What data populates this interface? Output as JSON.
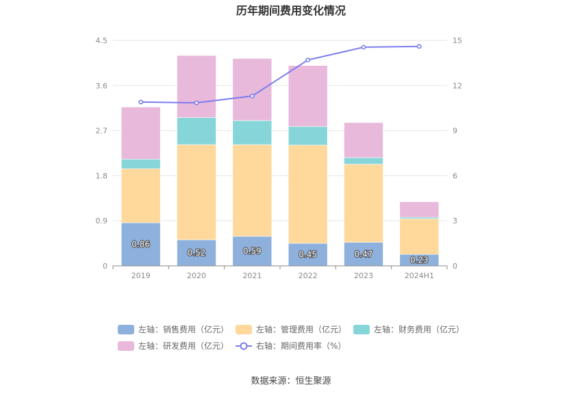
{
  "title": "历年期间费用变化情况",
  "source": "数据来源：恒生聚源",
  "chart_data": {
    "type": "bar",
    "stacked": true,
    "categories": [
      "2019",
      "2020",
      "2021",
      "2022",
      "2023",
      "2024H1"
    ],
    "left_axis": {
      "ticks": [
        "0",
        "0.9",
        "1.8",
        "2.7",
        "3.6",
        "4.5"
      ],
      "ylim": [
        0,
        4.5
      ]
    },
    "right_axis": {
      "ticks": [
        "0",
        "3",
        "6",
        "9",
        "12",
        "15"
      ],
      "ylim": [
        0,
        15
      ]
    },
    "series": [
      {
        "name": "左轴：销售费用（亿元）",
        "type": "bar",
        "axis": "left",
        "color": "#8eb0dd",
        "values": [
          0.86,
          0.52,
          0.59,
          0.45,
          0.47,
          0.23
        ],
        "labels": [
          "0.86",
          "0.52",
          "0.59",
          "0.45",
          "0.47",
          "0.23"
        ]
      },
      {
        "name": "左轴：管理费用（亿元）",
        "type": "bar",
        "axis": "left",
        "color": "#ffd89b",
        "values": [
          1.08,
          1.9,
          1.83,
          1.96,
          1.56,
          0.71
        ]
      },
      {
        "name": "左轴：财务费用（亿元）",
        "type": "bar",
        "axis": "left",
        "color": "#86d6d9",
        "values": [
          0.19,
          0.54,
          0.48,
          0.37,
          0.13,
          0.03
        ]
      },
      {
        "name": "左轴：研发费用（亿元）",
        "type": "bar",
        "axis": "left",
        "color": "#e8b9da",
        "values": [
          1.04,
          1.24,
          1.24,
          1.22,
          0.7,
          0.31
        ]
      },
      {
        "name": "右轴：期间费用率（%）",
        "type": "line",
        "axis": "right",
        "color": "#7b7cef",
        "values": [
          10.9,
          10.85,
          11.3,
          13.7,
          14.55,
          14.6
        ]
      }
    ],
    "grid": true,
    "legend_position": "bottom"
  }
}
